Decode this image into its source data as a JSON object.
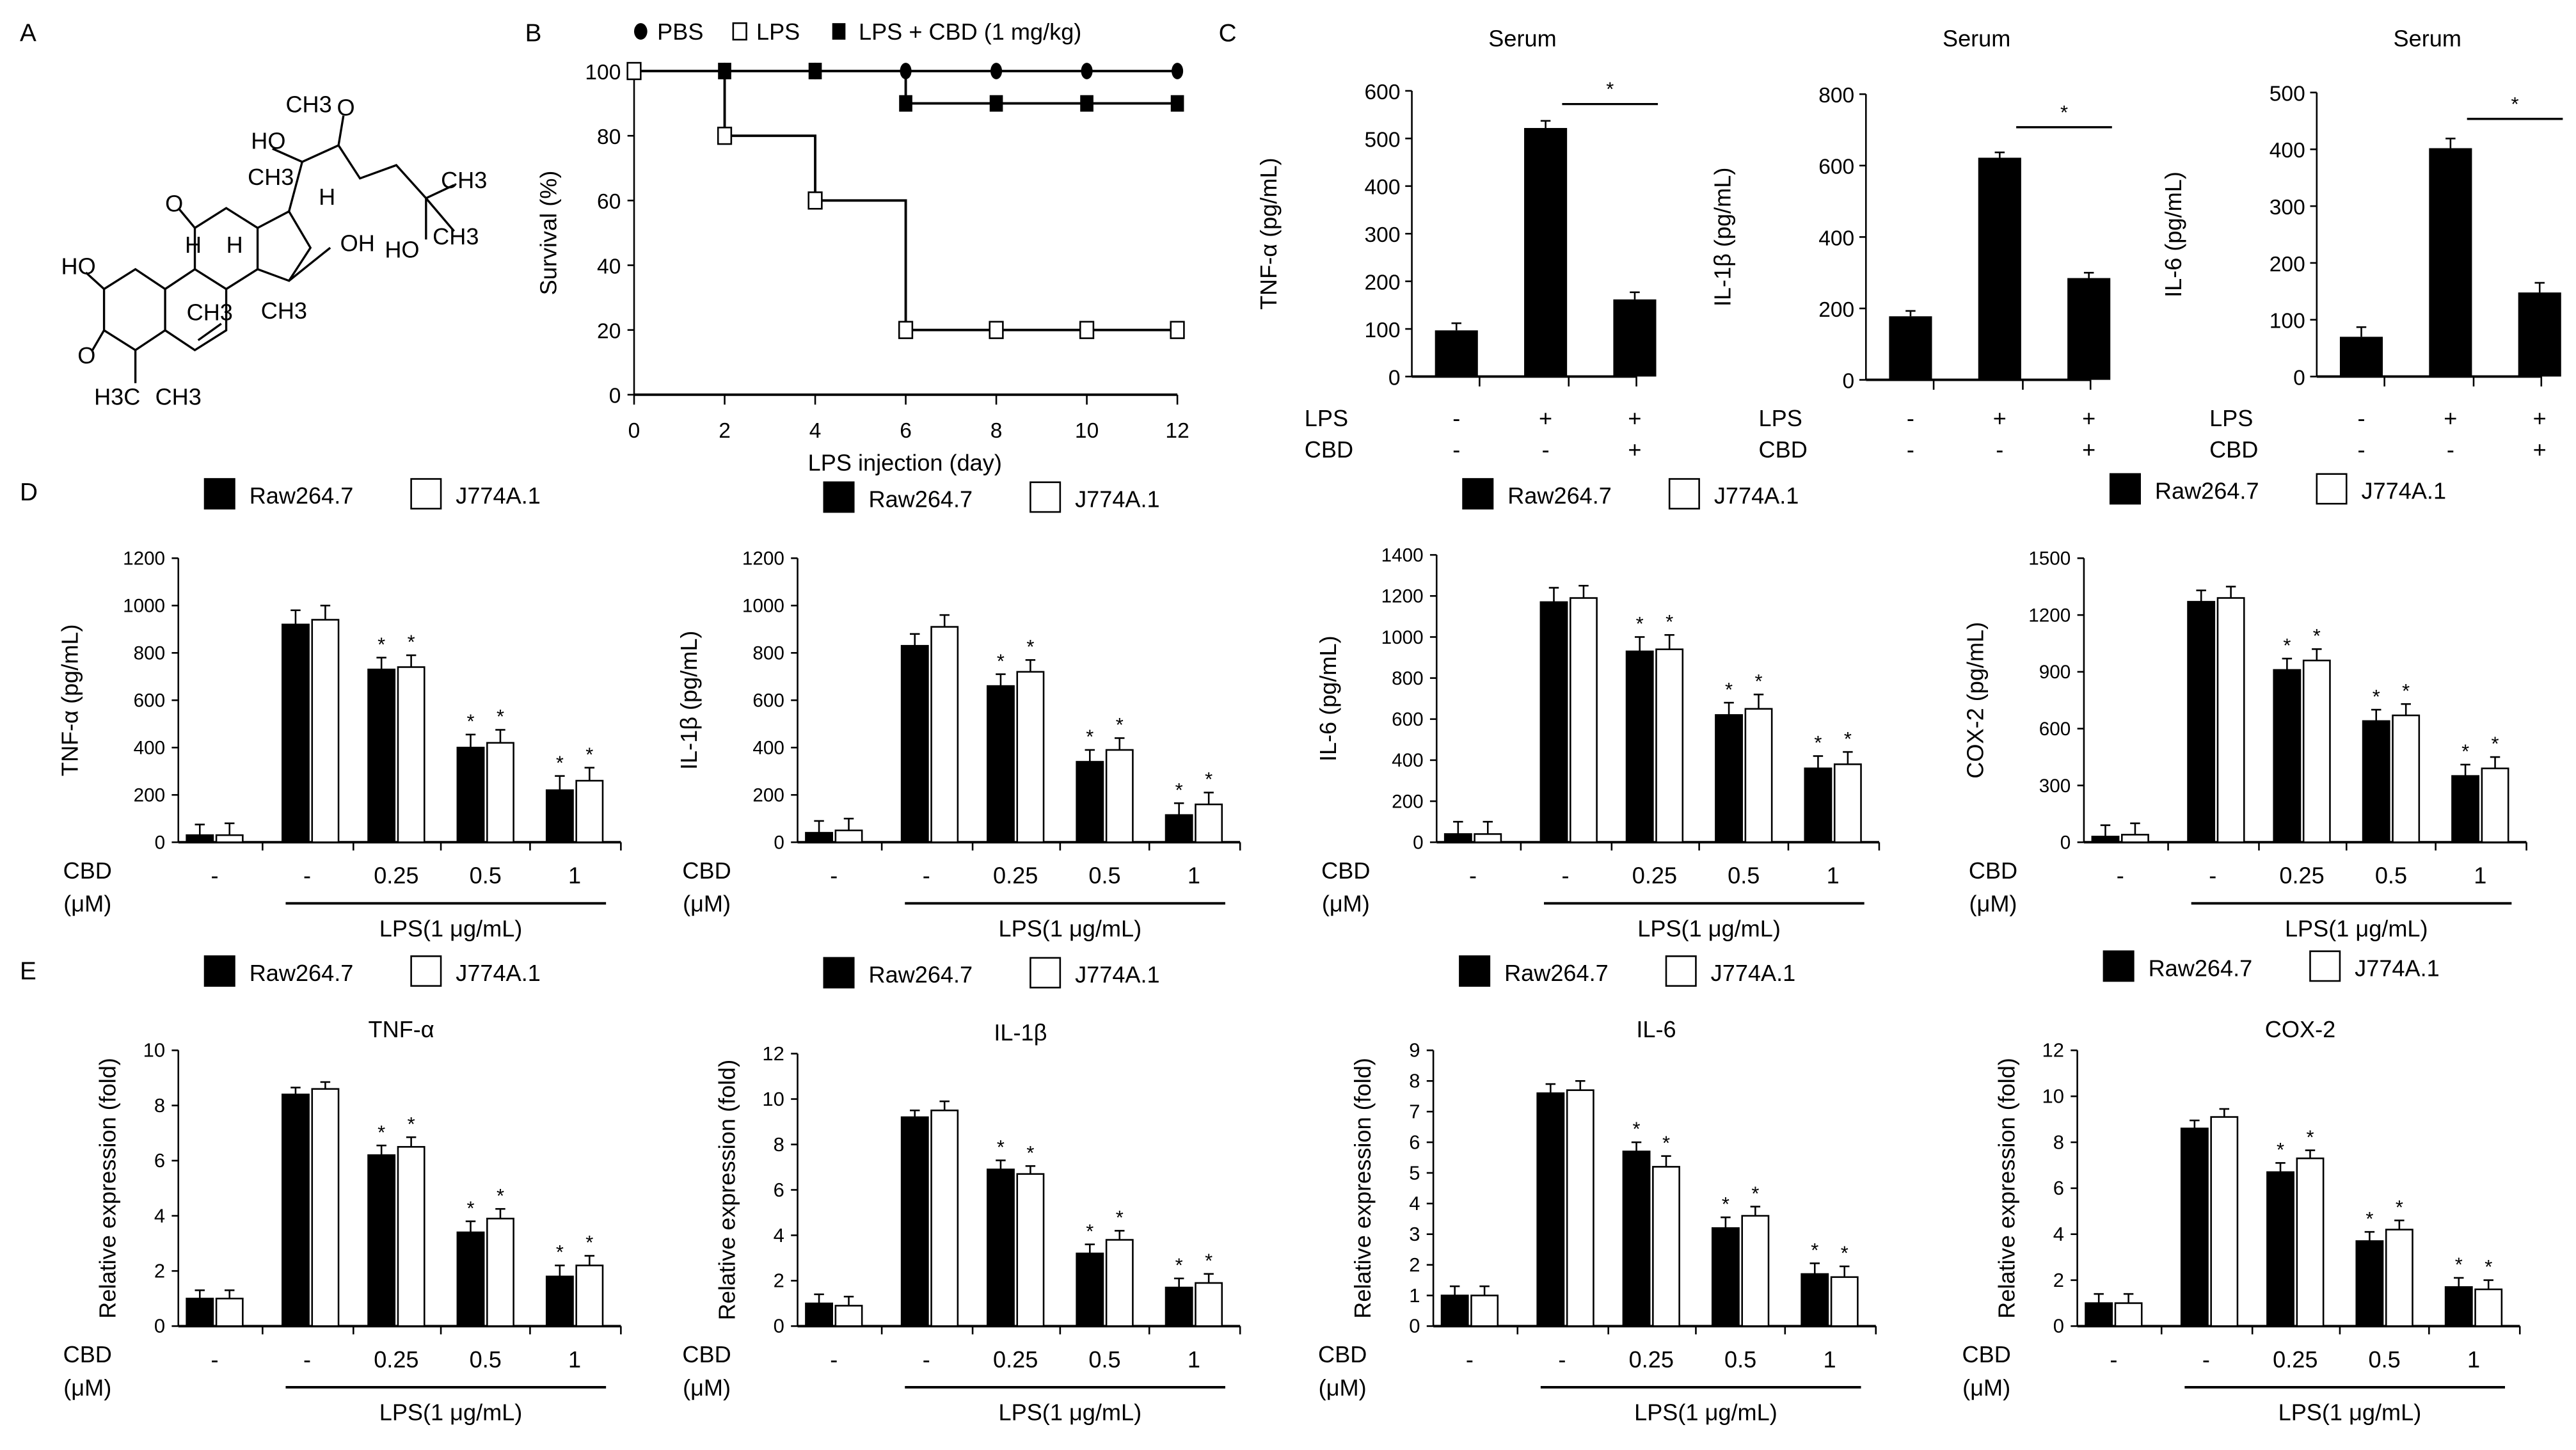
{
  "panel_labels": [
    "A",
    "B",
    "C",
    "D",
    "E"
  ],
  "molecule": {
    "labels": [
      "CH3",
      "O",
      "HO",
      "CH3",
      "H",
      "CH3",
      "O",
      "H",
      "H",
      "OH",
      "HO",
      "CH3",
      "HO",
      "CH3",
      "CH3",
      "O",
      "H3C",
      "CH3"
    ]
  },
  "colors": {
    "filled": "#000000",
    "open": "#ffffff",
    "stroke": "#000000"
  },
  "chart_data": [
    {
      "id": "B",
      "type": "line",
      "xlabel": "LPS injection (day)",
      "ylabel": "Survival  (%)",
      "xlim": [
        0,
        12
      ],
      "ylim": [
        0,
        100
      ],
      "xticks": [
        0,
        2,
        4,
        6,
        8,
        10,
        12
      ],
      "yticks": [
        0,
        20,
        40,
        60,
        80,
        100
      ],
      "legend_position": "top",
      "series": [
        {
          "name": "PBS",
          "marker": "filled-circle",
          "x": [
            0,
            2,
            4,
            6,
            8,
            10,
            12
          ],
          "y": [
            100,
            100,
            100,
            100,
            100,
            100,
            100
          ]
        },
        {
          "name": "LPS",
          "marker": "open-square",
          "x": [
            0,
            2,
            4,
            6,
            8,
            10,
            12
          ],
          "y": [
            100,
            80,
            60,
            20,
            20,
            20,
            20
          ]
        },
        {
          "name": "LPS + CBD (1 mg/kg)",
          "marker": "filled-square",
          "x": [
            0,
            2,
            4,
            6,
            8,
            10,
            12
          ],
          "y": [
            100,
            100,
            100,
            90,
            90,
            90,
            90
          ]
        }
      ]
    },
    {
      "id": "C1",
      "type": "bar",
      "title": "Serum",
      "ylabel": "TNF-α  (pg/mL)",
      "ylim": [
        0,
        600
      ],
      "yticks": [
        0,
        100,
        200,
        300,
        400,
        500,
        600
      ],
      "rows": [
        {
          "label": "LPS",
          "values": [
            "-",
            "+",
            "+"
          ]
        },
        {
          "label": "CBD",
          "values": [
            "-",
            "-",
            "+"
          ]
        }
      ],
      "values": [
        97,
        522,
        162
      ],
      "errors": [
        15,
        15,
        15
      ],
      "significance": {
        "between": [
          2,
          3
        ],
        "mark": "*"
      }
    },
    {
      "id": "C2",
      "type": "bar",
      "title": "Serum",
      "ylabel": "IL-1β  (pg/mL)",
      "ylim": [
        0,
        800
      ],
      "yticks": [
        0,
        200,
        400,
        600,
        800
      ],
      "rows": [
        {
          "label": "LPS",
          "values": [
            "-",
            "+",
            "+"
          ]
        },
        {
          "label": "CBD",
          "values": [
            "-",
            "-",
            "+"
          ]
        }
      ],
      "values": [
        178,
        622,
        285
      ],
      "errors": [
        15,
        15,
        15
      ],
      "significance": {
        "between": [
          2,
          3
        ],
        "mark": "*"
      }
    },
    {
      "id": "C3",
      "type": "bar",
      "title": "Serum",
      "ylabel": "IL-6  (pg/mL)",
      "ylim": [
        0,
        500
      ],
      "yticks": [
        0,
        100,
        200,
        300,
        400,
        500
      ],
      "rows": [
        {
          "label": "LPS",
          "values": [
            "-",
            "+",
            "+"
          ]
        },
        {
          "label": "CBD",
          "values": [
            "-",
            "-",
            "+"
          ]
        }
      ],
      "values": [
        70,
        402,
        148
      ],
      "errors": [
        17,
        17,
        17
      ],
      "significance": {
        "between": [
          2,
          3
        ],
        "mark": "*"
      }
    },
    {
      "id": "D1",
      "type": "bar",
      "ylabel": "TNF-α  (pg/mL)",
      "ylim": [
        0,
        1200
      ],
      "yticks": [
        0,
        200,
        400,
        600,
        800,
        1000,
        1200
      ],
      "categories": [
        "-",
        "-",
        "0.25",
        "0.5",
        "1"
      ],
      "cbd_label": "CBD",
      "unit_label": "(μM)",
      "group_label": "LPS(1 μg/mL)",
      "significant": [
        false,
        false,
        true,
        true,
        true
      ],
      "mark": "*",
      "series": [
        {
          "name": "Raw264.7",
          "fill": "filled",
          "values": [
            30,
            920,
            730,
            400,
            220
          ],
          "errors": [
            45,
            60,
            50,
            55,
            60
          ]
        },
        {
          "name": "J774A.1",
          "fill": "open",
          "values": [
            30,
            940,
            740,
            420,
            260
          ],
          "errors": [
            50,
            60,
            50,
            55,
            55
          ]
        }
      ]
    },
    {
      "id": "D2",
      "type": "bar",
      "ylabel": "IL-1β  (pg/mL)",
      "ylim": [
        0,
        1200
      ],
      "yticks": [
        0,
        200,
        400,
        600,
        800,
        1000,
        1200
      ],
      "categories": [
        "-",
        "-",
        "0.25",
        "0.5",
        "1"
      ],
      "cbd_label": "CBD",
      "unit_label": "(μM)",
      "group_label": "LPS(1 μg/mL)",
      "significant": [
        false,
        false,
        true,
        true,
        true
      ],
      "mark": "*",
      "series": [
        {
          "name": "Raw264.7",
          "fill": "filled",
          "values": [
            40,
            830,
            660,
            340,
            115
          ],
          "errors": [
            50,
            50,
            50,
            50,
            50
          ]
        },
        {
          "name": "J774A.1",
          "fill": "open",
          "values": [
            50,
            910,
            720,
            390,
            160
          ],
          "errors": [
            50,
            50,
            50,
            50,
            50
          ]
        }
      ]
    },
    {
      "id": "D3",
      "type": "bar",
      "ylabel": "IL-6  (pg/mL)",
      "ylim": [
        0,
        1400
      ],
      "yticks": [
        0,
        200,
        400,
        600,
        800,
        1000,
        1200,
        1400
      ],
      "categories": [
        "-",
        "-",
        "0.25",
        "0.5",
        "1"
      ],
      "cbd_label": "CBD",
      "unit_label": "(μM)",
      "group_label": "LPS(1 μg/mL)",
      "significant": [
        false,
        false,
        true,
        true,
        true
      ],
      "mark": "*",
      "series": [
        {
          "name": "Raw264.7",
          "fill": "filled",
          "values": [
            40,
            1170,
            930,
            620,
            360
          ],
          "errors": [
            60,
            70,
            70,
            60,
            60
          ]
        },
        {
          "name": "J774A.1",
          "fill": "open",
          "values": [
            40,
            1190,
            940,
            650,
            380
          ],
          "errors": [
            60,
            60,
            70,
            70,
            60
          ]
        }
      ]
    },
    {
      "id": "D4",
      "type": "bar",
      "ylabel": "COX-2  (pg/mL)",
      "ylim": [
        0,
        1500
      ],
      "yticks": [
        0,
        300,
        600,
        900,
        1200,
        1500
      ],
      "categories": [
        "-",
        "-",
        "0.25",
        "0.5",
        "1"
      ],
      "cbd_label": "CBD",
      "unit_label": "(μM)",
      "group_label": "LPS(1 μg/mL)",
      "significant": [
        false,
        false,
        true,
        true,
        true
      ],
      "mark": "*",
      "series": [
        {
          "name": "Raw264.7",
          "fill": "filled",
          "values": [
            30,
            1270,
            910,
            640,
            350
          ],
          "errors": [
            60,
            60,
            60,
            60,
            60
          ]
        },
        {
          "name": "J774A.1",
          "fill": "open",
          "values": [
            40,
            1290,
            960,
            670,
            390
          ],
          "errors": [
            60,
            60,
            60,
            60,
            60
          ]
        }
      ]
    },
    {
      "id": "E1",
      "type": "bar",
      "title": "TNF-α",
      "ylabel": "Relative  expression (fold)",
      "ylim": [
        0,
        10
      ],
      "yticks": [
        0,
        2,
        4,
        6,
        8,
        10
      ],
      "categories": [
        "-",
        "-",
        "0.25",
        "0.5",
        "1"
      ],
      "cbd_label": "CBD",
      "unit_label": "(μM)",
      "group_label": "LPS(1 μg/mL)",
      "significant": [
        false,
        false,
        true,
        true,
        true
      ],
      "mark": "*",
      "series": [
        {
          "name": "Raw264.7",
          "fill": "filled",
          "values": [
            1.0,
            8.4,
            6.2,
            3.4,
            1.8
          ],
          "errors": [
            0.3,
            0.25,
            0.35,
            0.4,
            0.4
          ]
        },
        {
          "name": "J774A.1",
          "fill": "open",
          "values": [
            1.0,
            8.6,
            6.5,
            3.9,
            2.2
          ],
          "errors": [
            0.3,
            0.25,
            0.35,
            0.35,
            0.35
          ]
        }
      ]
    },
    {
      "id": "E2",
      "type": "bar",
      "title": "IL-1β",
      "ylabel": "Relative  expression (fold)",
      "ylim": [
        0,
        12
      ],
      "yticks": [
        0,
        2,
        4,
        6,
        8,
        10,
        12
      ],
      "categories": [
        "-",
        "-",
        "0.25",
        "0.5",
        "1"
      ],
      "cbd_label": "CBD",
      "unit_label": "(μM)",
      "group_label": "LPS(1 μg/mL)",
      "significant": [
        false,
        false,
        true,
        true,
        true
      ],
      "mark": "*",
      "series": [
        {
          "name": "Raw264.7",
          "fill": "filled",
          "values": [
            1.0,
            9.2,
            6.9,
            3.2,
            1.7
          ],
          "errors": [
            0.4,
            0.3,
            0.4,
            0.4,
            0.4
          ]
        },
        {
          "name": "J774A.1",
          "fill": "open",
          "values": [
            0.9,
            9.5,
            6.7,
            3.8,
            1.9
          ],
          "errors": [
            0.4,
            0.4,
            0.35,
            0.4,
            0.4
          ]
        }
      ]
    },
    {
      "id": "E3",
      "type": "bar",
      "title": "IL-6",
      "ylabel": "Relative  expression (fold)",
      "ylim": [
        0,
        9
      ],
      "yticks": [
        0,
        1,
        2,
        3,
        4,
        5,
        6,
        7,
        8,
        9
      ],
      "categories": [
        "-",
        "-",
        "0.25",
        "0.5",
        "1"
      ],
      "cbd_label": "CBD",
      "unit_label": "(μM)",
      "group_label": "LPS(1 μg/mL)",
      "significant": [
        false,
        false,
        true,
        true,
        true
      ],
      "mark": "*",
      "series": [
        {
          "name": "Raw264.7",
          "fill": "filled",
          "values": [
            1.0,
            7.6,
            5.7,
            3.2,
            1.7
          ],
          "errors": [
            0.3,
            0.3,
            0.3,
            0.35,
            0.35
          ]
        },
        {
          "name": "J774A.1",
          "fill": "open",
          "values": [
            1.0,
            7.7,
            5.2,
            3.6,
            1.6
          ],
          "errors": [
            0.3,
            0.3,
            0.35,
            0.3,
            0.35
          ]
        }
      ]
    },
    {
      "id": "E4",
      "type": "bar",
      "title": "COX-2",
      "ylabel": "Relative  expression (fold)",
      "ylim": [
        0,
        12
      ],
      "yticks": [
        0,
        2,
        4,
        6,
        8,
        10,
        12
      ],
      "categories": [
        "-",
        "-",
        "0.25",
        "0.5",
        "1"
      ],
      "cbd_label": "CBD",
      "unit_label": "(μM)",
      "group_label": "LPS(1 μg/mL)",
      "significant": [
        false,
        false,
        true,
        true,
        true
      ],
      "mark": "*",
      "series": [
        {
          "name": "Raw264.7",
          "fill": "filled",
          "values": [
            1.0,
            8.6,
            6.7,
            3.7,
            1.7
          ],
          "errors": [
            0.4,
            0.35,
            0.4,
            0.4,
            0.4
          ]
        },
        {
          "name": "J774A.1",
          "fill": "open",
          "values": [
            1.0,
            9.1,
            7.3,
            4.2,
            1.6
          ],
          "errors": [
            0.4,
            0.35,
            0.35,
            0.4,
            0.4
          ]
        }
      ]
    }
  ]
}
